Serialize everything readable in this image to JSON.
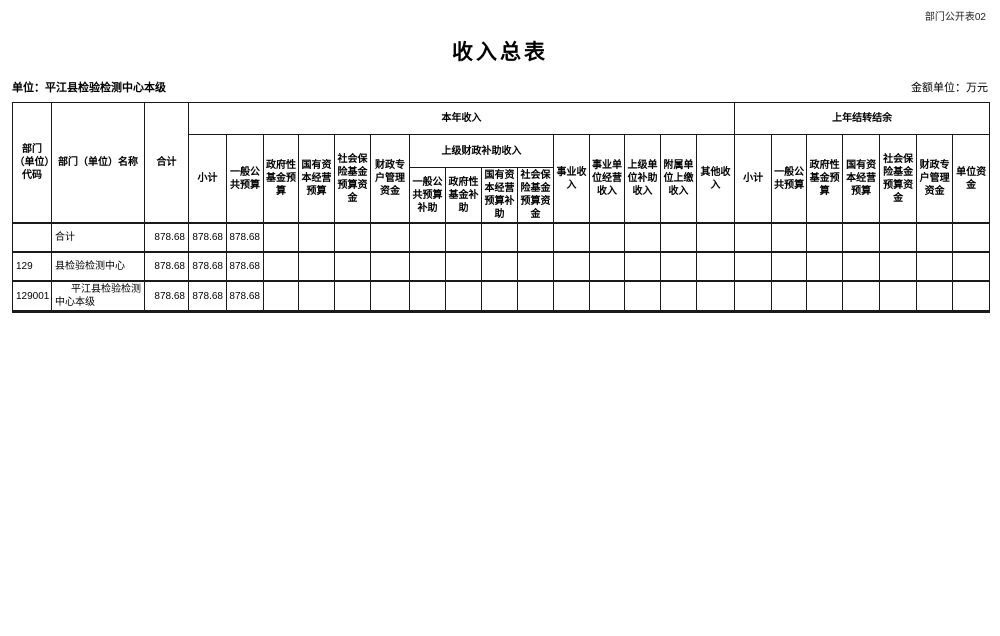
{
  "page": {
    "doc_label": "部门公开表02",
    "title": "收入总表",
    "unit_label": "单位：平江县检验检测中心本级",
    "amount_unit_label": "金额单位：万元"
  },
  "table": {
    "headers": {
      "dept_code": "部门（单位）代码",
      "dept_name": "部门（单位）名称",
      "grand_total": "合计",
      "current_year_group": "本年收入",
      "carryover_group": "上年结转结余",
      "cy": {
        "subtotal": "小计",
        "general_public_budget": "一般公共预算",
        "gov_fund_budget": "政府性基金预算",
        "state_capital_budget": "国有资本经营预算",
        "social_insurance_fund_budget": "社会保险基金预算资金",
        "fiscal_special_account_funds": "财政专户管理资金",
        "higher_level_subsidy_group": "上级财政补助收入",
        "hl_general_public_subsidy": "一般公共预算补助",
        "hl_gov_fund_subsidy": "政府性基金补助",
        "hl_state_capital_subsidy": "国有资本经营预算补助",
        "hl_social_insurance_fund": "社会保险基金预算资金",
        "operating_income": "事业收入",
        "business_operating_income": "事业单位经营收入",
        "higher_unit_subsidy_income": "上级单位补助收入",
        "affiliated_unit_paid_income": "附属单位上缴收入",
        "other_income": "其他收入"
      },
      "py": {
        "subtotal": "小计",
        "general_public_budget": "一般公共预算",
        "gov_fund_budget": "政府性基金预算",
        "state_capital_budget": "国有资本经营预算",
        "social_insurance_fund_budget": "社会保险基金预算资金",
        "fiscal_special_account_funds": "财政专户管理资金",
        "unit_funds": "单位资金"
      }
    },
    "rows": [
      {
        "code": "",
        "name": "合计",
        "indent": false,
        "values": [
          "878.68",
          "878.68",
          "878.68",
          "",
          "",
          "",
          "",
          "",
          "",
          "",
          "",
          "",
          "",
          "",
          "",
          "",
          "",
          "",
          "",
          "",
          "",
          "",
          ""
        ]
      },
      {
        "code": "129",
        "name": "县检验检测中心",
        "indent": false,
        "values": [
          "878.68",
          "878.68",
          "878.68",
          "",
          "",
          "",
          "",
          "",
          "",
          "",
          "",
          "",
          "",
          "",
          "",
          "",
          "",
          "",
          "",
          "",
          "",
          "",
          ""
        ]
      },
      {
        "code": "129001",
        "name": "平江县检验检测中心本级",
        "indent": true,
        "values": [
          "878.68",
          "878.68",
          "878.68",
          "",
          "",
          "",
          "",
          "",
          "",
          "",
          "",
          "",
          "",
          "",
          "",
          "",
          "",
          "",
          "",
          "",
          "",
          "",
          ""
        ]
      }
    ]
  }
}
